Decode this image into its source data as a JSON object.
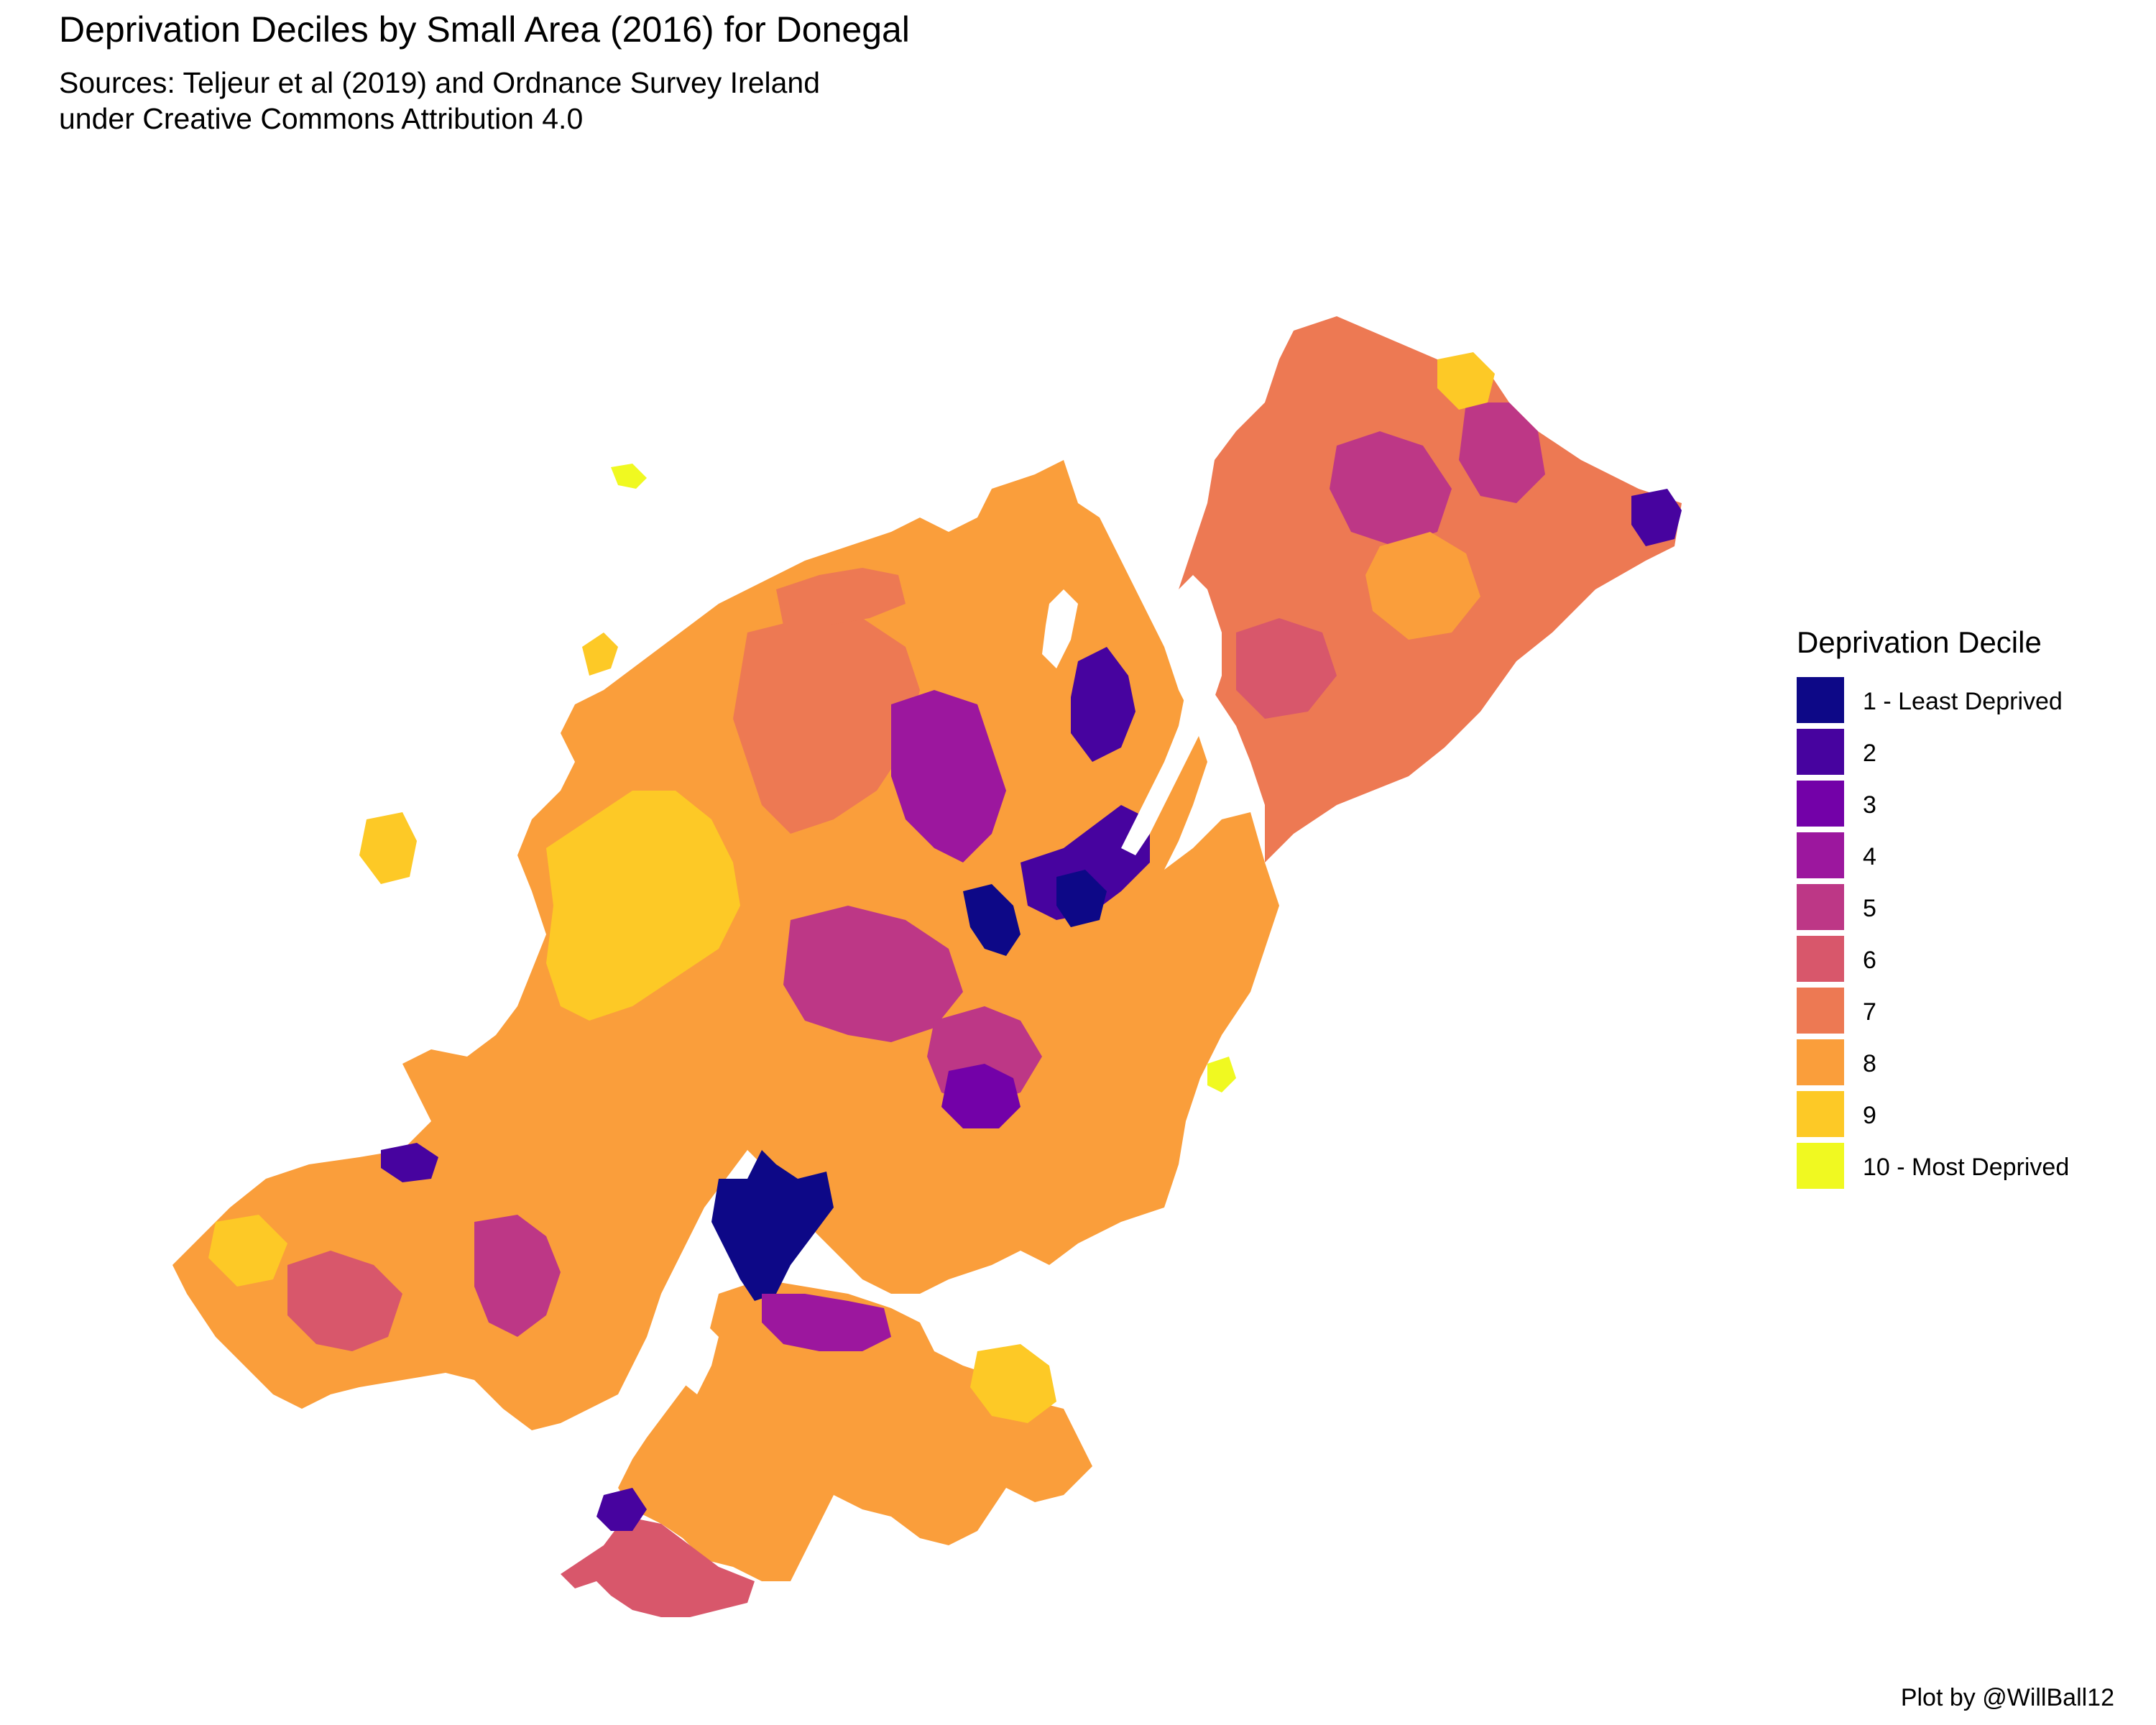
{
  "title": "Deprivation Deciles by Small Area (2016) for Donegal",
  "subtitle": {
    "line1": "Sources: Teljeur et al (2019) and Ordnance Survey Ireland",
    "line2": "under Creative Commons Attribution 4.0"
  },
  "legend": {
    "title": "Deprivation Decile",
    "items": [
      {
        "label": "1 - Least Deprived",
        "color": "#0d0887"
      },
      {
        "label": "2",
        "color": "#47039f"
      },
      {
        "label": "3",
        "color": "#7301a8"
      },
      {
        "label": "4",
        "color": "#9c179e"
      },
      {
        "label": "5",
        "color": "#bd3786"
      },
      {
        "label": "6",
        "color": "#d8576b"
      },
      {
        "label": "7",
        "color": "#ed7953"
      },
      {
        "label": "8",
        "color": "#fa9e3b"
      },
      {
        "label": "9",
        "color": "#fdc926"
      },
      {
        "label": "10 - Most Deprived",
        "color": "#f0f921"
      }
    ]
  },
  "caption": "Plot by @WillBall12"
}
